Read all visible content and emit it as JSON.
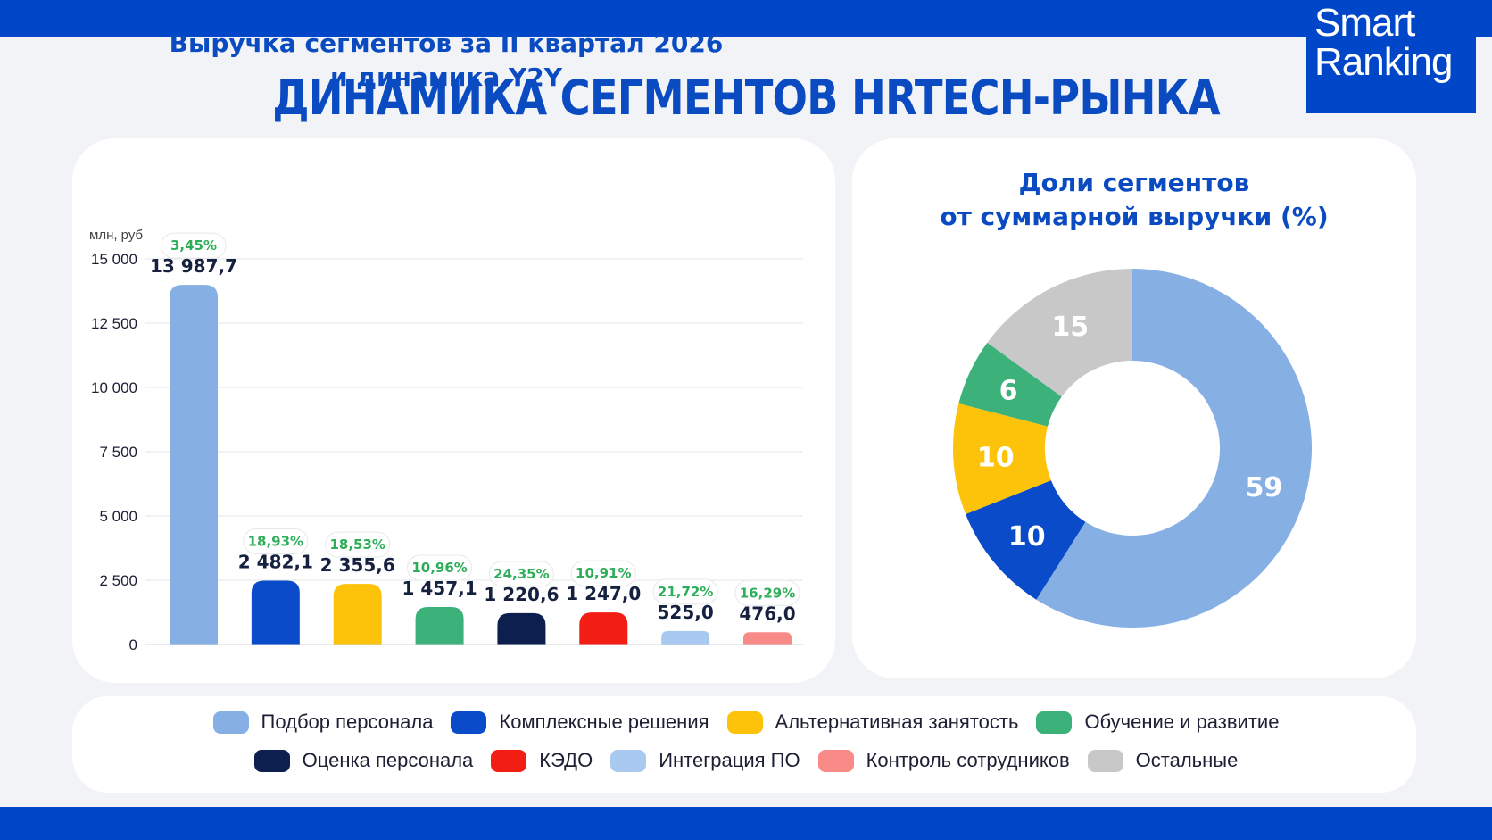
{
  "page": {
    "title": "ДИНАМИКА СЕГМЕНТОВ HRTECH-РЫНКА",
    "logo": [
      "Smart",
      "Ranking"
    ]
  },
  "chart_data": [
    {
      "type": "bar",
      "title_lines": [
        "Выручка сегментов за II квартал 2026",
        "и динамика Y2Y"
      ],
      "ylabel": "млн, руб",
      "ylim": [
        0,
        15000
      ],
      "yticks": [
        0,
        2500,
        5000,
        7500,
        10000,
        12500,
        15000
      ],
      "ytick_labels": [
        "0",
        "2 500",
        "5 000",
        "7 500",
        "10 000",
        "12 500",
        "15 000"
      ],
      "grid": true,
      "categories": [
        "Подбор персонала",
        "Комплексные решения",
        "Альтернативная занятость",
        "Обучение и развитие",
        "Оценка персонала",
        "КЭДО",
        "Интеграция ПО",
        "Контроль сотрудников"
      ],
      "values": [
        13987.7,
        2482.1,
        2355.6,
        1457.1,
        1220.6,
        1247.0,
        525.0,
        476.0
      ],
      "value_labels": [
        "13 987,7",
        "2 482,1",
        "2 355,6",
        "1 457,1",
        "1 220,6",
        "1 247,0",
        "525,0",
        "476,0"
      ],
      "growth_labels": [
        "3,45%",
        "18,93%",
        "18,53%",
        "10,96%",
        "24,35%",
        "10,91%",
        "21,72%",
        "16,29%"
      ],
      "colors": [
        "#86b0e3",
        "#0a4bc9",
        "#fcc30a",
        "#3db17a",
        "#0d1f4e",
        "#f21e14",
        "#a9c9f0",
        "#f88a87"
      ]
    },
    {
      "type": "pie",
      "title_lines": [
        "Доли сегментов",
        "от суммарной выручки (%)"
      ],
      "labels": [
        "Подбор персонала",
        "Комплексные решения",
        "Альтернативная занятость",
        "Обучение и развитие",
        "Остальные"
      ],
      "values": [
        59,
        10,
        10,
        6,
        15
      ],
      "value_labels": [
        "59",
        "10",
        "10",
        "6",
        "15"
      ],
      "colors": [
        "#86b0e3",
        "#0a4bc9",
        "#fcc30a",
        "#3db17a",
        "#c8c8c8"
      ]
    }
  ],
  "legend": {
    "rows": [
      [
        {
          "label": "Подбор персонала",
          "color": "#86b0e3"
        },
        {
          "label": "Комплексные решения",
          "color": "#0a4bc9"
        },
        {
          "label": "Альтернативная занятость",
          "color": "#fcc30a"
        },
        {
          "label": "Обучение и развитие",
          "color": "#3db17a"
        }
      ],
      [
        {
          "label": "Оценка персонала",
          "color": "#0d1f4e"
        },
        {
          "label": "КЭДО",
          "color": "#f21e14"
        },
        {
          "label": "Интеграция ПО",
          "color": "#a9c9f0"
        },
        {
          "label": "Контроль сотрудников",
          "color": "#f88a87"
        },
        {
          "label": "Остальные",
          "color": "#c8c8c8"
        }
      ]
    ]
  }
}
